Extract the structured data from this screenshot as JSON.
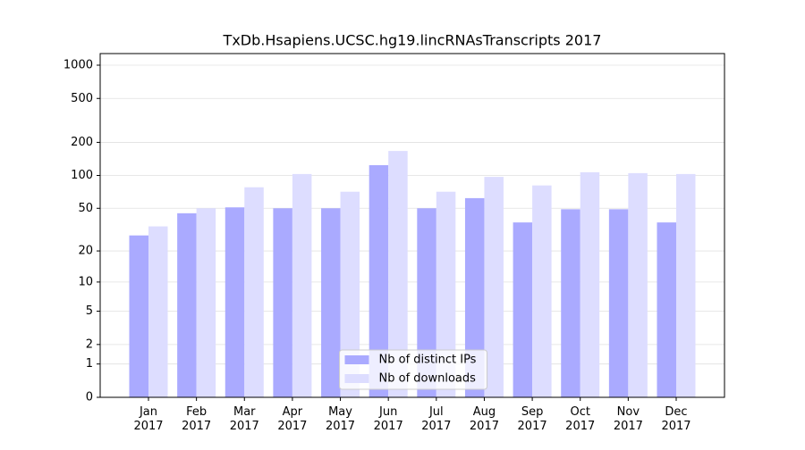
{
  "chart_data": {
    "type": "bar",
    "title": "TxDb.Hsapiens.UCSC.hg19.lincRNAsTranscripts 2017",
    "categories": [
      "Jan 2017",
      "Feb 2017",
      "Mar 2017",
      "Apr 2017",
      "May 2017",
      "Jun 2017",
      "Jul 2017",
      "Aug 2017",
      "Sep 2017",
      "Oct 2017",
      "Nov 2017",
      "Dec 2017"
    ],
    "series": [
      {
        "name": "Nb of distinct IPs",
        "color": "#aaaaff",
        "values": [
          28,
          45,
          51,
          50,
          50,
          124,
          50,
          62,
          37,
          49,
          49,
          37
        ]
      },
      {
        "name": "Nb of downloads",
        "color": "#ddddff",
        "values": [
          34,
          50,
          78,
          103,
          71,
          167,
          71,
          97,
          81,
          107,
          105,
          103
        ]
      }
    ],
    "yscale": "log1p",
    "ylim": [
      0,
      1273
    ],
    "yticks": [
      0,
      1,
      2,
      5,
      10,
      20,
      50,
      100,
      200,
      500,
      1000
    ],
    "grid": true,
    "legend": "lower center"
  }
}
